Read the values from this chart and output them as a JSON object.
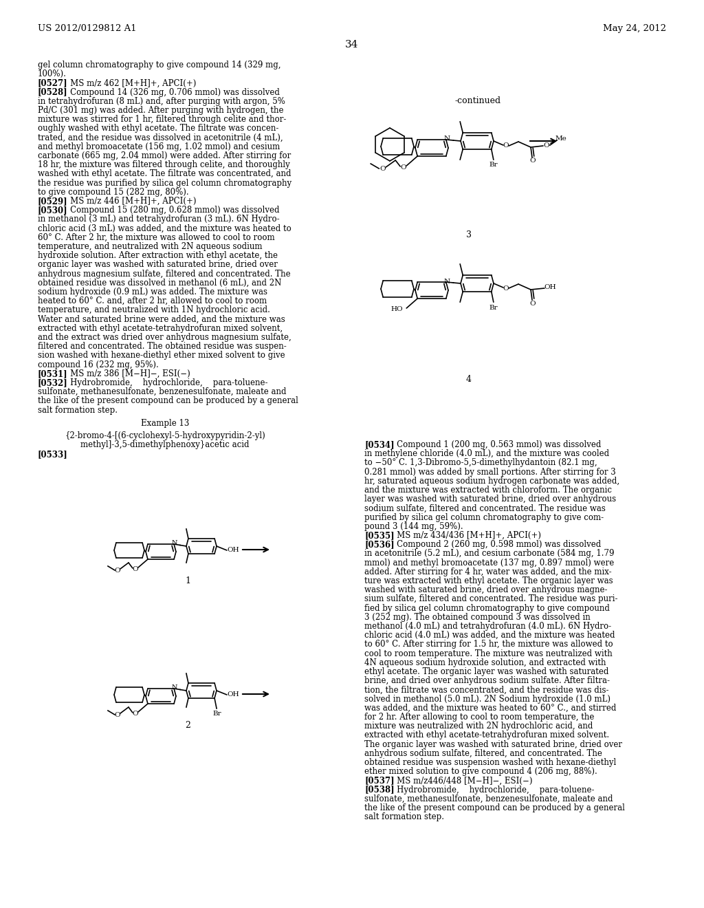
{
  "background_color": "#ffffff",
  "header_left": "US 2012/0129812 A1",
  "header_right": "May 24, 2012",
  "page_number": "34",
  "continued_label": "-continued"
}
